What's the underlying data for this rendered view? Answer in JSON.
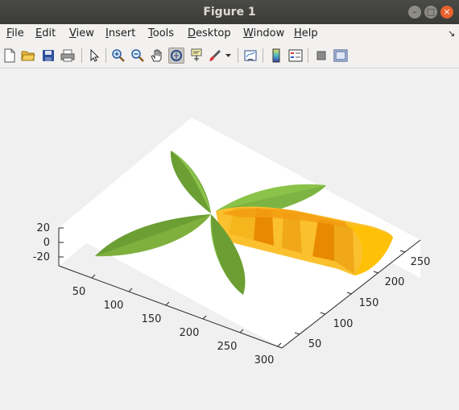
{
  "window": {
    "title": "Figure 1"
  },
  "menu": {
    "items": [
      {
        "label": "File",
        "u": "F",
        "rest": "ile"
      },
      {
        "label": "Edit",
        "u": "E",
        "rest": "dit"
      },
      {
        "label": "View",
        "u": "V",
        "rest": "iew"
      },
      {
        "label": "Insert",
        "u": "I",
        "rest": "nsert"
      },
      {
        "label": "Tools",
        "u": "T",
        "rest": "ools"
      },
      {
        "label": "Desktop",
        "u": "D",
        "rest": "esktop"
      },
      {
        "label": "Window",
        "u": "W",
        "rest": "indow"
      },
      {
        "label": "Help",
        "u": "H",
        "rest": "elp"
      }
    ]
  },
  "toolbar": {
    "icons": [
      "new-figure-icon",
      "open-file-icon",
      "save-icon",
      "print-icon",
      "select-arrow-icon",
      "zoom-in-icon",
      "zoom-out-icon",
      "pan-hand-icon",
      "rotate-3d-icon",
      "data-cursor-icon",
      "brush-icon",
      "brush-dropdown-icon",
      "link-plot-icon",
      "colorbar-icon",
      "legend-icon",
      "hide-plot-tools-icon",
      "show-plot-tools-icon"
    ],
    "pressed": "rotate-3d-icon"
  },
  "plot": {
    "z_ticks": [
      "20",
      "0",
      "-20"
    ],
    "x_ticks": [
      "50",
      "100",
      "150",
      "200",
      "250",
      "300"
    ],
    "y_ticks": [
      "50",
      "100",
      "150",
      "200",
      "250"
    ],
    "colors": {
      "leaf_dark": "#6b9e33",
      "leaf_light": "#8bc34a",
      "trunk_yellow": "#fbc02d",
      "trunk_orange": "#f39c12",
      "trunk_dark": "#e88a00"
    }
  }
}
